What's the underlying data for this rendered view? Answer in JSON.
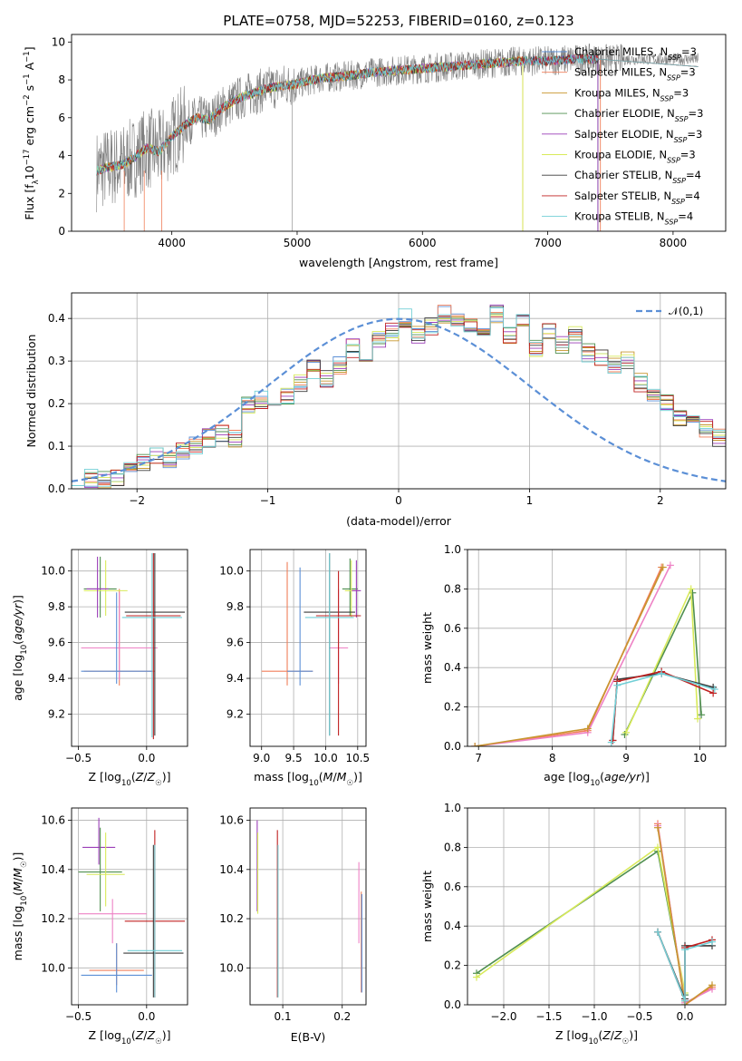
{
  "figure_title": "PLATE=0758, MJD=52253, FIBERID=0160, z=0.123",
  "colors": {
    "chabrier_miles": "#5b8fd6",
    "salpeter_miles": "#f07f5a",
    "kroupa_miles": "#c8962f",
    "chabrier_elodie": "#4f8f4f",
    "salpeter_elodie": "#9b3fb8",
    "kroupa_elodie": "#d8ea5a",
    "chabrier_stelib": "#3b3b3b",
    "salpeter_stelib": "#c02020",
    "kroupa_stelib": "#72cfd6",
    "gray": "#808080",
    "pink": "#ee82c5",
    "teal": "#58c8c8",
    "normal": "#5b8fd6"
  },
  "chart_data": [
    {
      "type": "line",
      "title": "PLATE=0758, MJD=52253, FIBERID=0160, z=0.123",
      "xlabel": "wavelength [Angstrom, rest frame]",
      "ylabel": "Flux [f_λ 10^-17 erg cm^-2 s^-1 A^-1]",
      "xlim": [
        3200,
        8420
      ],
      "ylim": [
        0,
        10.4
      ],
      "xticks": [
        4000,
        5000,
        6000,
        7000,
        8000
      ],
      "yticks": [
        0,
        2,
        4,
        6,
        8,
        10
      ],
      "legend_position": "right",
      "series": [
        {
          "name": "Chabrier MILES, N_SSP=3"
        },
        {
          "name": "Salpeter MILES, N_SSP=3"
        },
        {
          "name": "Kroupa MILES, N_SSP=3"
        },
        {
          "name": "Chabrier ELODIE, N_SSP=3"
        },
        {
          "name": "Salpeter ELODIE, N_SSP=3"
        },
        {
          "name": "Kroupa ELODIE, N_SSP=3"
        },
        {
          "name": "Chabrier STELIB, N_SSP=4"
        },
        {
          "name": "Salpeter STELIB, N_SSP=4"
        },
        {
          "name": "Kroupa STELIB, N_SSP=4"
        }
      ],
      "model_curve": {
        "x": [
          3400,
          3500,
          3600,
          3700,
          3800,
          3900,
          4000,
          4100,
          4200,
          4300,
          4400,
          4500,
          4600,
          4800,
          5000,
          5200,
          5400,
          5600,
          5800,
          6000,
          6200,
          6400,
          6600,
          6800,
          7000,
          7200,
          7400
        ],
        "y": [
          3.2,
          3.4,
          3.5,
          3.9,
          4.4,
          4.2,
          5.0,
          5.6,
          6.0,
          5.9,
          6.5,
          6.9,
          7.2,
          7.6,
          7.8,
          8.1,
          8.2,
          8.4,
          8.5,
          8.6,
          8.7,
          8.8,
          8.9,
          9.0,
          9.0,
          9.1,
          9.1
        ]
      },
      "observed_range": {
        "x_start": 3400,
        "x_end": 8200
      }
    },
    {
      "type": "histogram",
      "xlabel": "(data-model)/error",
      "ylabel": "Normed distribution",
      "xlim": [
        -2.5,
        2.5
      ],
      "ylim": [
        0,
        0.46
      ],
      "xticks": [
        -2,
        -1,
        0,
        1,
        2
      ],
      "yticks": [
        0.0,
        0.1,
        0.2,
        0.3,
        0.4
      ],
      "grid": true,
      "legend": "𝒩(0,1)",
      "legend_position": "top-right",
      "bin_edges_start": -2.5,
      "bin_width": 0.1,
      "base_values": [
        0.03,
        0.025,
        0.02,
        0.03,
        0.04,
        0.06,
        0.08,
        0.07,
        0.09,
        0.1,
        0.12,
        0.13,
        0.12,
        0.2,
        0.21,
        0.2,
        0.22,
        0.25,
        0.28,
        0.26,
        0.29,
        0.33,
        0.31,
        0.35,
        0.37,
        0.4,
        0.36,
        0.38,
        0.41,
        0.4,
        0.39,
        0.37,
        0.41,
        0.36,
        0.39,
        0.33,
        0.37,
        0.34,
        0.36,
        0.32,
        0.31,
        0.29,
        0.3,
        0.25,
        0.22,
        0.2,
        0.17,
        0.16,
        0.14,
        0.12
      ]
    },
    {
      "type": "scatter",
      "xlabel": "Z [log10(Z/Z☉)]",
      "ylabel": "age  [log10(age/yr)]",
      "xlim": [
        -0.55,
        0.3
      ],
      "ylim": [
        9.02,
        10.12
      ],
      "xticks": [
        -0.5,
        0.0
      ],
      "yticks": [
        9.2,
        9.4,
        9.6,
        9.8,
        10.0
      ],
      "points": [
        {
          "x": -0.2,
          "y": 9.44,
          "xerr": 0.26,
          "ylo": 9.36,
          "yhi": 9.9,
          "c": "salpeter_miles"
        },
        {
          "x": -0.2,
          "y": 9.57,
          "xerr": 0.28,
          "ylo": 9.39,
          "yhi": 9.88,
          "c": "pink"
        },
        {
          "x": -0.34,
          "y": 9.9,
          "xerr": 0.12,
          "ylo": 9.74,
          "yhi": 10.08,
          "c": "chabrier_elodie"
        },
        {
          "x": -0.3,
          "y": 9.89,
          "xerr": 0.16,
          "ylo": 9.75,
          "yhi": 10.06,
          "c": "kroupa_elodie"
        },
        {
          "x": -0.36,
          "y": 9.9,
          "xerr": 0.08,
          "ylo": 9.74,
          "yhi": 10.08,
          "c": "salpeter_elodie"
        },
        {
          "x": 0.06,
          "y": 9.77,
          "xerr": 0.22,
          "ylo": 9.08,
          "yhi": 10.1,
          "c": "chabrier_stelib"
        },
        {
          "x": 0.05,
          "y": 9.75,
          "xerr": 0.2,
          "ylo": 9.06,
          "yhi": 10.1,
          "c": "salpeter_stelib"
        },
        {
          "x": 0.04,
          "y": 9.74,
          "xerr": 0.22,
          "ylo": 9.07,
          "yhi": 10.1,
          "c": "kroupa_stelib"
        },
        {
          "x": -0.22,
          "y": 9.44,
          "xerr": 0.26,
          "ylo": 9.37,
          "yhi": 9.88,
          "c": "chabrier_miles"
        }
      ]
    },
    {
      "type": "scatter",
      "xlabel": "mass [log10(M/M☉)]",
      "ylabel": "",
      "xlim": [
        8.82,
        10.63
      ],
      "ylim": [
        9.02,
        10.12
      ],
      "xticks": [
        9.0,
        9.5,
        10.0,
        10.5
      ],
      "yticks": [
        9.2,
        9.4,
        9.6,
        9.8,
        10.0
      ],
      "points": [
        {
          "x": 9.4,
          "y": 9.44,
          "xerr": 0.4,
          "ylo": 9.36,
          "yhi": 10.05,
          "c": "salpeter_miles"
        },
        {
          "x": 10.2,
          "y": 9.57,
          "xerr": 0.15,
          "ylo": 9.37,
          "yhi": 9.9,
          "c": "pink"
        },
        {
          "x": 10.38,
          "y": 9.9,
          "xerr": 0.12,
          "ylo": 9.75,
          "yhi": 10.07,
          "c": "chabrier_elodie"
        },
        {
          "x": 10.4,
          "y": 9.89,
          "xerr": 0.1,
          "ylo": 9.74,
          "yhi": 10.06,
          "c": "kroupa_elodie"
        },
        {
          "x": 10.48,
          "y": 9.89,
          "xerr": 0.07,
          "ylo": 9.74,
          "yhi": 10.06,
          "c": "salpeter_elodie"
        },
        {
          "x": 10.06,
          "y": 9.77,
          "xerr": 0.4,
          "ylo": 9.08,
          "yhi": 10.1,
          "c": "chabrier_stelib"
        },
        {
          "x": 10.2,
          "y": 9.75,
          "xerr": 0.35,
          "ylo": 9.08,
          "yhi": 10.0,
          "c": "salpeter_stelib"
        },
        {
          "x": 10.06,
          "y": 9.74,
          "xerr": 0.38,
          "ylo": 9.08,
          "yhi": 10.1,
          "c": "kroupa_stelib"
        },
        {
          "x": 9.6,
          "y": 9.44,
          "xerr": 0.2,
          "ylo": 9.36,
          "yhi": 10.02,
          "c": "chabrier_miles"
        }
      ]
    },
    {
      "type": "line",
      "xlabel": "age  [log10(age/yr)]",
      "ylabel": "mass weight",
      "xlim": [
        6.85,
        10.35
      ],
      "ylim": [
        0,
        1
      ],
      "xticks": [
        7,
        8,
        9,
        10
      ],
      "yticks": [
        0.0,
        0.2,
        0.4,
        0.6,
        0.8,
        1.0
      ],
      "series": [
        {
          "c": "salpeter_miles",
          "x": [
            6.95,
            8.48,
            9.48
          ],
          "y": [
            0.0,
            0.08,
            0.91
          ]
        },
        {
          "c": "pink",
          "x": [
            6.95,
            8.48,
            9.6
          ],
          "y": [
            0.0,
            0.07,
            0.92
          ]
        },
        {
          "c": "kroupa_miles",
          "x": [
            6.95,
            8.48,
            9.5
          ],
          "y": [
            0.0,
            0.09,
            0.91
          ]
        },
        {
          "c": "chabrier_elodie",
          "x": [
            8.98,
            9.9,
            10.02
          ],
          "y": [
            0.06,
            0.78,
            0.16
          ]
        },
        {
          "c": "kroupa_elodie",
          "x": [
            9.0,
            9.88,
            9.97
          ],
          "y": [
            0.07,
            0.8,
            0.14
          ]
        },
        {
          "c": "chabrier_stelib",
          "x": [
            8.82,
            8.88,
            9.48,
            10.18
          ],
          "y": [
            0.03,
            0.34,
            0.37,
            0.3
          ]
        },
        {
          "c": "salpeter_stelib",
          "x": [
            8.82,
            8.88,
            9.48,
            10.18
          ],
          "y": [
            0.03,
            0.33,
            0.38,
            0.27
          ]
        },
        {
          "c": "kroupa_stelib",
          "x": [
            8.8,
            8.88,
            9.48,
            10.2
          ],
          "y": [
            0.02,
            0.31,
            0.37,
            0.29
          ]
        }
      ]
    },
    {
      "type": "scatter",
      "xlabel": "Z [log10(Z/Z☉)]",
      "ylabel": "mass [log10(M/M☉)]",
      "xlim": [
        -0.55,
        0.3
      ],
      "ylim": [
        9.85,
        10.65
      ],
      "xticks": [
        -0.5,
        0.0
      ],
      "yticks": [
        10.0,
        10.2,
        10.4,
        10.6
      ],
      "points": [
        {
          "x": -0.35,
          "y": 10.49,
          "xerr": 0.12,
          "ylo": 10.42,
          "yhi": 10.61,
          "c": "salpeter_elodie"
        },
        {
          "x": -0.34,
          "y": 10.39,
          "xerr": 0.16,
          "ylo": 10.23,
          "yhi": 10.57,
          "c": "chabrier_elodie"
        },
        {
          "x": -0.3,
          "y": 10.38,
          "xerr": 0.14,
          "ylo": 10.25,
          "yhi": 10.55,
          "c": "kroupa_elodie"
        },
        {
          "x": -0.25,
          "y": 10.22,
          "xerr": 0.25,
          "ylo": 10.1,
          "yhi": 10.28,
          "c": "pink"
        },
        {
          "x": -0.22,
          "y": 9.99,
          "xerr": 0.2,
          "ylo": 9.93,
          "yhi": 10.1,
          "c": "salpeter_miles"
        },
        {
          "x": -0.22,
          "y": 9.97,
          "xerr": 0.26,
          "ylo": 9.9,
          "yhi": 10.1,
          "c": "chabrier_miles"
        },
        {
          "x": 0.06,
          "y": 10.19,
          "xerr": 0.22,
          "ylo": 9.88,
          "yhi": 10.56,
          "c": "salpeter_stelib"
        },
        {
          "x": 0.05,
          "y": 10.06,
          "xerr": 0.22,
          "ylo": 9.88,
          "yhi": 10.5,
          "c": "chabrier_stelib"
        },
        {
          "x": 0.06,
          "y": 10.07,
          "xerr": 0.2,
          "ylo": 9.88,
          "yhi": 10.5,
          "c": "kroupa_stelib"
        }
      ]
    },
    {
      "type": "scatter",
      "xlabel": "E(B-V)",
      "ylabel": "",
      "xlim": [
        0.045,
        0.24
      ],
      "ylim": [
        9.85,
        10.65
      ],
      "xticks": [
        0.1,
        0.2
      ],
      "yticks": [
        10.0,
        10.2,
        10.4,
        10.6
      ],
      "points": [
        {
          "x": 0.057,
          "ylo": 10.23,
          "yhi": 10.6,
          "c": "salpeter_elodie"
        },
        {
          "x": 0.058,
          "ylo": 10.22,
          "yhi": 10.55,
          "c": "kroupa_elodie"
        },
        {
          "x": 0.091,
          "ylo": 9.88,
          "yhi": 10.56,
          "c": "salpeter_stelib"
        },
        {
          "x": 0.092,
          "ylo": 9.88,
          "yhi": 10.5,
          "c": "kroupa_stelib"
        },
        {
          "x": 0.228,
          "ylo": 10.1,
          "yhi": 10.43,
          "c": "pink"
        },
        {
          "x": 0.232,
          "ylo": 9.9,
          "yhi": 10.31,
          "c": "salpeter_miles"
        },
        {
          "x": 0.233,
          "ylo": 9.9,
          "yhi": 10.3,
          "c": "chabrier_miles"
        }
      ]
    },
    {
      "type": "line",
      "xlabel": "Z [log10(Z/Z☉)]",
      "ylabel": "mass weight",
      "xlim": [
        -2.4,
        0.45
      ],
      "ylim": [
        0,
        1
      ],
      "xticks": [
        -2.0,
        -1.5,
        -1.0,
        -0.5,
        0.0
      ],
      "yticks": [
        0.0,
        0.2,
        0.4,
        0.6,
        0.8,
        1.0
      ],
      "series": [
        {
          "c": "chabrier_elodie",
          "x": [
            -2.3,
            -0.3,
            0.0
          ],
          "y": [
            0.16,
            0.78,
            0.05
          ]
        },
        {
          "c": "kroupa_elodie",
          "x": [
            -2.3,
            -0.3,
            0.0
          ],
          "y": [
            0.14,
            0.8,
            0.06
          ]
        },
        {
          "c": "salpeter_miles",
          "x": [
            -0.3,
            0.0,
            0.3
          ],
          "y": [
            0.92,
            0.0,
            0.09
          ]
        },
        {
          "c": "pink",
          "x": [
            -0.3,
            0.0,
            0.3
          ],
          "y": [
            0.91,
            0.01,
            0.08
          ]
        },
        {
          "c": "kroupa_miles",
          "x": [
            -0.3,
            0.0,
            0.3
          ],
          "y": [
            0.9,
            0.0,
            0.1
          ]
        },
        {
          "c": "chabrier_stelib",
          "x": [
            -0.3,
            0.0,
            0.0,
            0.3
          ],
          "y": [
            0.37,
            0.03,
            0.3,
            0.3
          ]
        },
        {
          "c": "salpeter_stelib",
          "x": [
            -0.3,
            0.0,
            0.0,
            0.3
          ],
          "y": [
            0.37,
            0.02,
            0.29,
            0.33
          ]
        },
        {
          "c": "kroupa_stelib",
          "x": [
            -0.3,
            0.0,
            0.0,
            0.3
          ],
          "y": [
            0.37,
            0.02,
            0.28,
            0.32
          ]
        }
      ]
    }
  ]
}
